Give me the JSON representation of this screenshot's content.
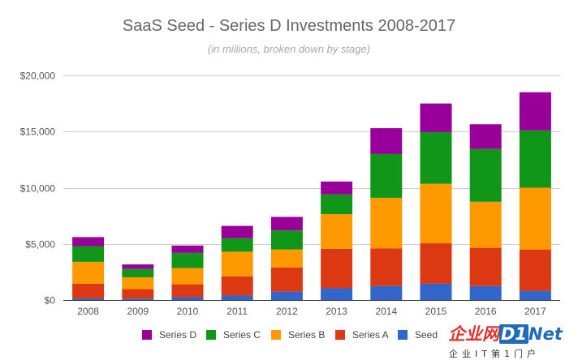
{
  "chart_data": {
    "type": "bar",
    "stacked": true,
    "title": "SaaS Seed - Series D Investments 2008-2017",
    "subtitle": "(in millions, broken down by stage)",
    "xlabel": "",
    "ylabel": "",
    "categories": [
      "2008",
      "2009",
      "2010",
      "2011",
      "2012",
      "2013",
      "2014",
      "2015",
      "2016",
      "2017"
    ],
    "series": [
      {
        "name": "Seed",
        "color": "#3366cc",
        "values": [
          150,
          120,
          250,
          400,
          750,
          1050,
          1250,
          1450,
          1250,
          800
        ]
      },
      {
        "name": "Series A",
        "color": "#dc3912",
        "values": [
          1300,
          850,
          1150,
          1700,
          2150,
          3500,
          3350,
          3600,
          3400,
          3700
        ]
      },
      {
        "name": "Series B",
        "color": "#ff9900",
        "values": [
          1950,
          1050,
          1450,
          2200,
          1600,
          3100,
          4500,
          5300,
          4100,
          5500
        ]
      },
      {
        "name": "Series C",
        "color": "#109618",
        "values": [
          1400,
          750,
          1350,
          1200,
          1700,
          1750,
          3900,
          4600,
          4700,
          5100
        ]
      },
      {
        "name": "Series D",
        "color": "#990099",
        "values": [
          800,
          400,
          650,
          1100,
          1200,
          1150,
          2300,
          2550,
          2200,
          3400
        ]
      }
    ],
    "ylim": [
      0,
      20000
    ],
    "y_ticks": [
      0,
      5000,
      10000,
      15000,
      20000
    ],
    "y_tick_labels": [
      "$0",
      "$5,000",
      "$10,000",
      "$15,000",
      "$20,000"
    ],
    "grid": true,
    "legend_position": "bottom",
    "legend_order": [
      "Series D",
      "Series C",
      "Series B",
      "Series A",
      "Seed"
    ]
  },
  "watermark": {
    "cn_text": "企业网",
    "di_text": "D1",
    "net_text": "Net",
    "sub_text": "企业IT第1门户"
  }
}
